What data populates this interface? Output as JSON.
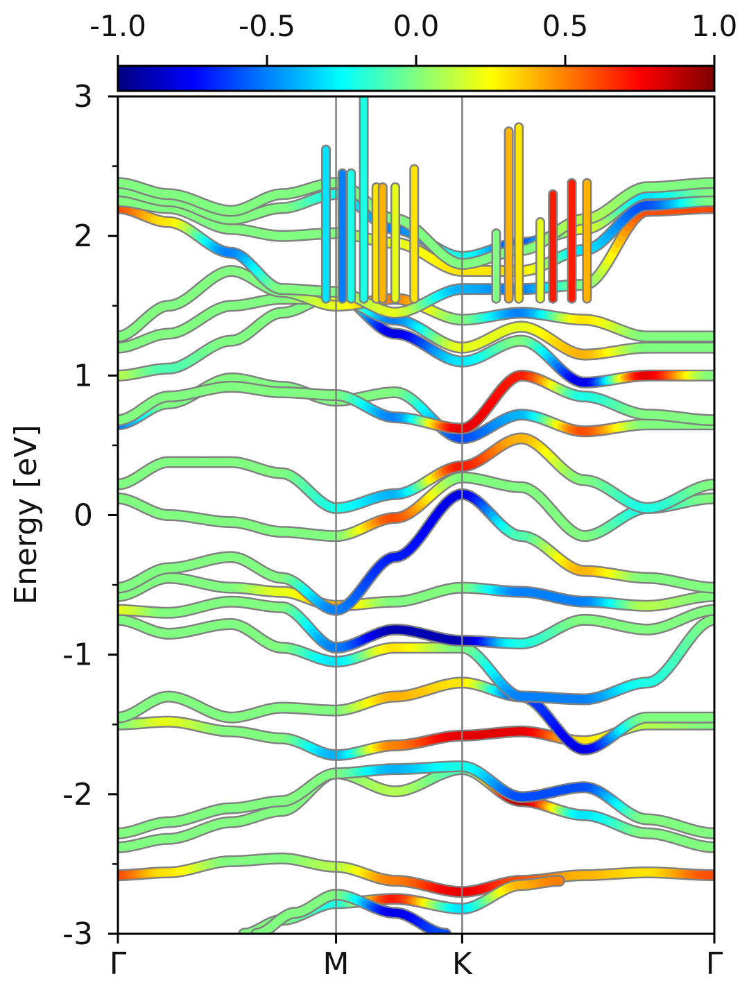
{
  "chart_data": {
    "type": "line",
    "title": "",
    "xlabel": "",
    "ylabel": "Energy [eV]",
    "ylim": [
      -3,
      3
    ],
    "xlim": [
      0,
      4.73
    ],
    "x_ticks": [
      {
        "label": "Γ",
        "x": 0
      },
      {
        "label": "M",
        "x": 1.73
      },
      {
        "label": "K",
        "x": 2.73
      },
      {
        "label": "Γ",
        "x": 4.73
      }
    ],
    "y_ticks": [
      {
        "label": "3",
        "value": 3
      },
      {
        "label": "2",
        "value": 2
      },
      {
        "label": "1",
        "value": 1
      },
      {
        "label": "0",
        "value": 0
      },
      {
        "label": "-1",
        "value": -1
      },
      {
        "label": "-2",
        "value": -2
      },
      {
        "label": "-3",
        "value": -3
      }
    ],
    "colorbar": {
      "colormap": "jet",
      "range": [
        -1,
        1
      ],
      "tick_labels": [
        "-1.0",
        "-0.5",
        "0.0",
        "0.5",
        "1.0"
      ],
      "tick_values": [
        -1,
        -0.5,
        0,
        0.5,
        1
      ]
    },
    "band_line_color": "#808080",
    "vertical_line_color": "#7f7f7f",
    "bands": [
      {
        "x": [
          0,
          0.4,
          0.9,
          1.3,
          1.73,
          2.2,
          2.73,
          3.2,
          3.7,
          4.2,
          4.73
        ],
        "y": [
          -2.58,
          -2.56,
          -2.48,
          -2.46,
          -2.52,
          -2.62,
          -2.7,
          -2.62,
          -2.58,
          -2.56,
          -2.58
        ],
        "w": [
          0.6,
          0.3,
          0.0,
          0.0,
          0.1,
          0.5,
          0.8,
          0.6,
          0.4,
          0.3,
          0.6
        ]
      },
      {
        "x": [
          0,
          0.4,
          0.9,
          1.3,
          1.73,
          2.2,
          2.73,
          3.2,
          3.7,
          4.2,
          4.73
        ],
        "y": [
          -2.38,
          -2.32,
          -2.2,
          -2.12,
          -1.85,
          -1.98,
          -1.82,
          -2.05,
          -2.15,
          -2.28,
          -2.38
        ],
        "w": [
          0.0,
          0.0,
          0.0,
          0.0,
          0.0,
          0.1,
          -0.1,
          0.9,
          -0.3,
          0.0,
          0.0
        ]
      },
      {
        "x": [
          0,
          0.4,
          0.9,
          1.3,
          1.73,
          2.2,
          2.73,
          3.2,
          3.7,
          4.2,
          4.73
        ],
        "y": [
          -2.28,
          -2.2,
          -2.1,
          -2.05,
          -1.85,
          -1.82,
          -1.8,
          -2.02,
          -1.95,
          -2.18,
          -2.28
        ],
        "w": [
          0.0,
          0.0,
          0.0,
          0.0,
          0.0,
          -0.4,
          -0.2,
          -0.6,
          -0.6,
          0.0,
          0.0
        ]
      },
      {
        "x": [
          0,
          0.4,
          0.9,
          1.3,
          1.73,
          2.2,
          2.73,
          3.2,
          3.7,
          4.2,
          4.73
        ],
        "y": [
          -1.5,
          -1.48,
          -1.55,
          -1.6,
          -1.72,
          -1.65,
          -1.58,
          -1.55,
          -1.62,
          -1.5,
          -1.5
        ],
        "w": [
          0.0,
          0.2,
          0.0,
          0.0,
          -0.4,
          0.5,
          0.8,
          0.8,
          0.3,
          0.1,
          0.0
        ]
      },
      {
        "x": [
          0,
          0.4,
          0.9,
          1.3,
          1.73,
          2.2,
          2.73,
          3.2,
          3.7,
          4.2,
          4.73
        ],
        "y": [
          -1.45,
          -1.3,
          -1.45,
          -1.38,
          -1.4,
          -1.3,
          -1.2,
          -1.3,
          -1.68,
          -1.45,
          -1.45
        ],
        "w": [
          0.0,
          0.0,
          0.0,
          0.0,
          0.0,
          0.4,
          0.3,
          -0.6,
          -0.8,
          0.0,
          0.0
        ]
      },
      {
        "x": [
          0,
          0.4,
          0.9,
          1.3,
          1.73,
          2.2,
          2.73,
          3.2,
          3.7,
          4.2,
          4.73
        ],
        "y": [
          -0.75,
          -0.85,
          -0.78,
          -0.95,
          -1.05,
          -0.95,
          -0.95,
          -1.3,
          -1.32,
          -1.2,
          -0.75
        ],
        "w": [
          0.0,
          0.0,
          0.0,
          0.0,
          -0.3,
          0.3,
          0.0,
          -0.5,
          -0.5,
          -0.2,
          0.0
        ]
      },
      {
        "x": [
          0,
          0.4,
          0.9,
          1.3,
          1.73,
          2.2,
          2.73,
          3.2,
          3.7,
          4.2,
          4.73
        ],
        "y": [
          -0.68,
          -0.7,
          -0.62,
          -0.66,
          -0.95,
          -0.82,
          -0.9,
          -0.92,
          -0.75,
          -0.82,
          -0.68
        ],
        "w": [
          0.2,
          0.0,
          0.0,
          0.0,
          -0.5,
          -0.9,
          -0.9,
          -0.2,
          0.0,
          0.0,
          0.0
        ]
      },
      {
        "x": [
          0,
          0.4,
          0.9,
          1.3,
          1.73,
          2.2,
          2.73,
          3.2,
          3.7,
          4.2,
          4.73
        ],
        "y": [
          -0.58,
          -0.45,
          -0.52,
          -0.55,
          -0.65,
          -0.62,
          -0.52,
          -0.55,
          -0.62,
          -0.65,
          -0.58
        ],
        "w": [
          0.0,
          0.0,
          0.0,
          0.2,
          0.4,
          0.0,
          0.0,
          -0.5,
          -0.5,
          0.1,
          0.0
        ]
      },
      {
        "x": [
          0,
          0.4,
          0.9,
          1.3,
          1.73,
          2.2,
          2.73,
          3.2,
          3.7,
          4.2,
          4.73
        ],
        "y": [
          -0.52,
          -0.38,
          -0.3,
          -0.45,
          -0.68,
          -0.3,
          0.15,
          -0.15,
          -0.4,
          -0.45,
          -0.52
        ],
        "w": [
          0.0,
          0.0,
          0.0,
          0.0,
          -0.5,
          -0.7,
          -0.8,
          -0.1,
          0.4,
          0.0,
          0.0
        ]
      },
      {
        "x": [
          0,
          0.4,
          0.9,
          1.3,
          1.73,
          2.2,
          2.73,
          3.2,
          3.7,
          4.2,
          4.73
        ],
        "y": [
          0.12,
          0.0,
          -0.05,
          -0.12,
          -0.15,
          -0.02,
          0.27,
          0.2,
          -0.15,
          0.05,
          0.12
        ],
        "w": [
          0.0,
          0.0,
          0.0,
          0.0,
          0.0,
          0.6,
          0.0,
          0.0,
          0.0,
          -0.2,
          0.0
        ]
      },
      {
        "x": [
          0,
          0.4,
          0.9,
          1.3,
          1.73,
          2.2,
          2.73,
          3.2,
          3.7,
          4.2,
          4.73
        ],
        "y": [
          0.22,
          0.38,
          0.38,
          0.3,
          0.05,
          0.15,
          0.35,
          0.55,
          0.25,
          0.05,
          0.22
        ],
        "w": [
          0.0,
          0.0,
          0.0,
          0.0,
          -0.2,
          -0.4,
          0.7,
          0.4,
          0.0,
          -0.2,
          0.0
        ]
      },
      {
        "x": [
          0,
          0.4,
          0.9,
          1.3,
          1.73,
          2.2,
          2.73,
          3.2,
          3.7,
          4.2,
          4.73
        ],
        "y": [
          0.65,
          0.8,
          0.98,
          0.92,
          0.82,
          0.88,
          0.55,
          0.72,
          0.6,
          0.65,
          0.65
        ],
        "w": [
          -0.5,
          0.0,
          0.0,
          0.0,
          0.0,
          0.0,
          -0.6,
          -0.4,
          0.6,
          0.0,
          0.0
        ]
      },
      {
        "x": [
          0,
          0.4,
          0.9,
          1.3,
          1.73,
          2.2,
          2.73,
          3.2,
          3.7,
          4.2,
          4.73
        ],
        "y": [
          0.68,
          0.85,
          0.92,
          0.88,
          0.86,
          0.7,
          0.62,
          1.0,
          0.85,
          0.72,
          0.68
        ],
        "w": [
          0.0,
          0.0,
          0.0,
          0.0,
          0.0,
          -0.5,
          0.8,
          0.7,
          -0.2,
          0.0,
          0.0
        ]
      },
      {
        "x": [
          0,
          0.4,
          0.9,
          1.3,
          1.73,
          2.2,
          2.73,
          3.2,
          3.7,
          4.2,
          4.73
        ],
        "y": [
          1.0,
          1.05,
          1.25,
          1.45,
          1.58,
          1.3,
          1.1,
          1.25,
          0.95,
          1.0,
          1.0
        ],
        "w": [
          0.1,
          -0.1,
          0.0,
          0.0,
          0.0,
          -0.8,
          -0.3,
          0.0,
          -0.8,
          0.8,
          0.0
        ]
      },
      {
        "x": [
          0,
          0.4,
          0.9,
          1.3,
          1.73,
          2.2,
          2.73,
          3.2,
          3.7,
          4.2,
          4.73
        ],
        "y": [
          1.2,
          1.3,
          1.5,
          1.55,
          1.55,
          1.4,
          1.2,
          1.35,
          1.15,
          1.2,
          1.2
        ],
        "w": [
          0.0,
          0.0,
          0.0,
          0.0,
          0.2,
          -0.5,
          0.2,
          0.2,
          0.4,
          0.0,
          0.0
        ]
      },
      {
        "x": [
          0,
          0.4,
          0.9,
          1.3,
          1.73,
          2.2,
          2.73,
          3.2,
          3.7,
          4.2,
          4.73
        ],
        "y": [
          1.28,
          1.5,
          1.75,
          1.6,
          1.5,
          1.55,
          1.4,
          1.45,
          1.4,
          1.28,
          1.28
        ],
        "w": [
          0.0,
          0.0,
          0.0,
          0.0,
          0.2,
          0.5,
          0.0,
          -0.5,
          0.3,
          0.0,
          0.0
        ]
      },
      {
        "x": [
          0,
          0.4,
          0.9,
          1.3,
          1.73,
          2.2,
          2.73,
          3.2,
          3.7,
          4.2,
          4.73
        ],
        "y": [
          2.2,
          2.1,
          1.88,
          1.62,
          1.6,
          1.45,
          1.62,
          1.62,
          1.65,
          2.18,
          2.2
        ],
        "w": [
          0.6,
          0.3,
          -0.5,
          0.0,
          0.0,
          0.2,
          -0.4,
          -0.5,
          0.0,
          0.6,
          0.6
        ]
      },
      {
        "x": [
          0,
          0.4,
          0.9,
          1.3,
          1.73,
          2.2,
          2.73,
          3.2,
          3.7,
          4.2,
          4.73
        ],
        "y": [
          2.25,
          2.2,
          2.05,
          2.0,
          2.02,
          1.95,
          1.75,
          1.75,
          1.9,
          2.22,
          2.25
        ],
        "w": [
          0.0,
          0.0,
          0.0,
          0.0,
          0.0,
          0.2,
          0.3,
          0.3,
          -0.3,
          -0.6,
          0.0
        ]
      },
      {
        "x": [
          0,
          0.4,
          0.9,
          1.3,
          1.73,
          2.2,
          2.73,
          3.2,
          3.7,
          4.2,
          4.73
        ],
        "y": [
          2.32,
          2.25,
          2.12,
          2.2,
          2.3,
          2.05,
          1.85,
          1.95,
          2.05,
          2.3,
          2.32
        ],
        "w": [
          0.0,
          0.0,
          0.0,
          0.0,
          -0.2,
          -0.5,
          -0.2,
          -0.6,
          0.2,
          -0.3,
          0.0
        ]
      },
      {
        "x": [
          0,
          0.4,
          0.9,
          1.3,
          1.73,
          2.2,
          2.73,
          3.2,
          3.7,
          4.2,
          4.73
        ],
        "y": [
          2.38,
          2.3,
          2.18,
          2.3,
          2.38,
          2.12,
          1.8,
          1.9,
          2.12,
          2.35,
          2.38
        ],
        "w": [
          0.0,
          0.0,
          0.0,
          0.0,
          0.0,
          0.0,
          0.0,
          0.0,
          0.1,
          0.0,
          0.0
        ]
      },
      {
        "x": [
          1.0,
          1.3,
          1.73,
          2.2,
          2.73,
          3.2,
          3.5
        ],
        "y": [
          -3.0,
          -2.9,
          -2.78,
          -2.75,
          -2.82,
          -2.65,
          -2.62
        ],
        "w": [
          0.0,
          0.0,
          -0.2,
          0.7,
          -0.3,
          0.4,
          0.5
        ]
      },
      {
        "x": [
          1.1,
          1.4,
          1.73,
          2.2,
          2.6
        ],
        "y": [
          -3.0,
          -2.85,
          -2.72,
          -2.85,
          -3.0
        ],
        "w": [
          0.0,
          0.0,
          0.0,
          -0.8,
          -0.6
        ]
      }
    ],
    "spikes": [
      {
        "x": 1.65,
        "top": 2.62,
        "w": -0.3
      },
      {
        "x": 1.78,
        "top": 2.45,
        "w": -0.5
      },
      {
        "x": 1.85,
        "top": 2.45,
        "w": -0.2
      },
      {
        "x": 1.95,
        "top": 3.0,
        "w": -0.2
      },
      {
        "x": 2.05,
        "top": 2.35,
        "w": 0.3
      },
      {
        "x": 2.1,
        "top": 2.35,
        "w": 0.4
      },
      {
        "x": 2.2,
        "top": 2.35,
        "w": 0.2
      },
      {
        "x": 2.35,
        "top": 2.48,
        "w": 0.3
      },
      {
        "x": 3.1,
        "top": 2.75,
        "w": 0.4
      },
      {
        "x": 3.18,
        "top": 2.78,
        "w": 0.3
      },
      {
        "x": 3.45,
        "top": 2.3,
        "w": 0.7
      },
      {
        "x": 3.6,
        "top": 2.38,
        "w": 0.7
      },
      {
        "x": 3.72,
        "top": 2.38,
        "w": 0.4
      },
      {
        "x": 3.0,
        "top": 2.02,
        "w": 0.0
      },
      {
        "x": 3.35,
        "top": 2.1,
        "w": 0.2
      }
    ]
  }
}
